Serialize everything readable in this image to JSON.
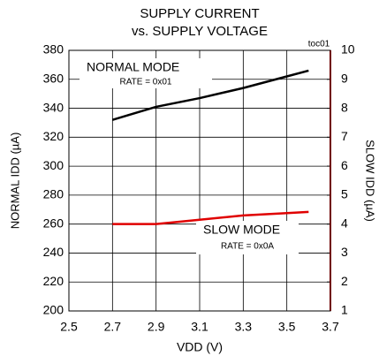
{
  "chart_data": {
    "type": "line",
    "title": [
      "SUPPLY CURRENT",
      "vs. SUPPLY VOLTAGE"
    ],
    "xlabel": "VDD (V)",
    "ylabel": "NORMAL IDD (µA)",
    "y2label": "SLOW IDD (µA)",
    "annotations": [
      "NORMAL MODE",
      "RATE = 0x01",
      "SLOW MODE",
      "RATE = 0x0A",
      "toc01"
    ],
    "x": [
      2.7,
      2.9,
      3.1,
      3.3,
      3.5,
      3.6
    ],
    "series": [
      {
        "name": "NORMAL MODE",
        "color": "#000000",
        "values": [
          332,
          341,
          347,
          354,
          362,
          366
        ]
      },
      {
        "name": "SLOW MODE",
        "color": "#e00000",
        "axis": "y2",
        "values": [
          4.0,
          4.0,
          4.15,
          4.3,
          4.38,
          4.42
        ]
      }
    ],
    "xlim": [
      2.5,
      3.7
    ],
    "xticks": [
      2.5,
      2.7,
      2.9,
      3.1,
      3.3,
      3.5,
      3.7
    ],
    "ylim": [
      200,
      380
    ],
    "yticks": [
      200,
      220,
      240,
      260,
      280,
      300,
      320,
      340,
      360,
      380
    ],
    "y2lim": [
      1,
      10
    ],
    "y2ticks": [
      1,
      2,
      3,
      4,
      5,
      6,
      7,
      8,
      9,
      10
    ],
    "grid": true
  }
}
